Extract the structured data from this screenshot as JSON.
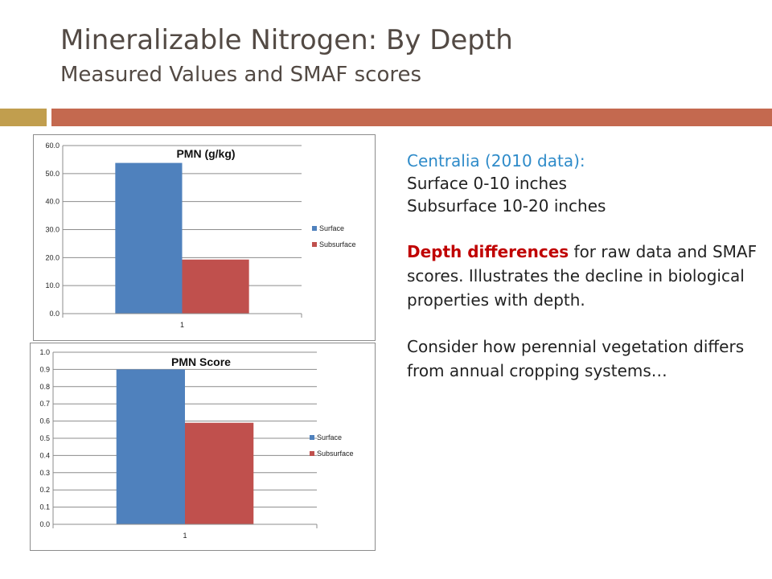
{
  "slide": {
    "title": "Mineralizable Nitrogen: By Depth",
    "subtitle": "Measured Values and SMAF scores"
  },
  "text": {
    "heading": "Centralia (2010 data):",
    "line1": "Surface 0-10 inches",
    "line2": "Subsurface 10-20 inches",
    "para2_em": "Depth differences",
    "para2_rest": " for raw data and SMAF scores. Illustrates the decline in biological properties with depth.",
    "para3": "Consider how perennial vegetation differs from annual cropping systems…"
  },
  "colors": {
    "surface": "#4f81bd",
    "subsurface": "#c0504d",
    "accent_gold": "#c19e4e",
    "accent_rust": "#c4694f",
    "heading_blue": "#2e8bc9",
    "emphasis_red": "#c00000"
  },
  "chart_data": [
    {
      "type": "bar",
      "title": "PMN (g/kg)",
      "categories": [
        "1"
      ],
      "series": [
        {
          "name": "Surface",
          "values": [
            53.8
          ],
          "color": "#4f81bd"
        },
        {
          "name": "Subsurface",
          "values": [
            19.3
          ],
          "color": "#c0504d"
        }
      ],
      "ylim": [
        0,
        60
      ],
      "yticks": [
        "0.0",
        "10.0",
        "20.0",
        "30.0",
        "40.0",
        "50.0",
        "60.0"
      ],
      "grid": true,
      "legend": "right"
    },
    {
      "type": "bar",
      "title": "PMN Score",
      "categories": [
        "1"
      ],
      "series": [
        {
          "name": "Surface",
          "values": [
            0.9
          ],
          "color": "#4f81bd"
        },
        {
          "name": "Subsurface",
          "values": [
            0.59
          ],
          "color": "#c0504d"
        }
      ],
      "ylim": [
        0,
        1
      ],
      "yticks": [
        "0.0",
        "0.1",
        "0.2",
        "0.3",
        "0.4",
        "0.5",
        "0.6",
        "0.7",
        "0.8",
        "0.9",
        "1.0"
      ],
      "grid": true,
      "legend": "right"
    }
  ]
}
